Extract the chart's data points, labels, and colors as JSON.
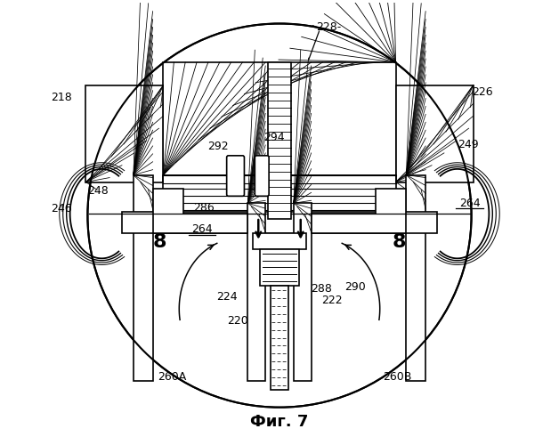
{
  "title": "Фиг. 7",
  "bg_color": "#ffffff",
  "lc": "#000000",
  "fig_w": 6.28,
  "fig_h": 5.0,
  "dpi": 100
}
